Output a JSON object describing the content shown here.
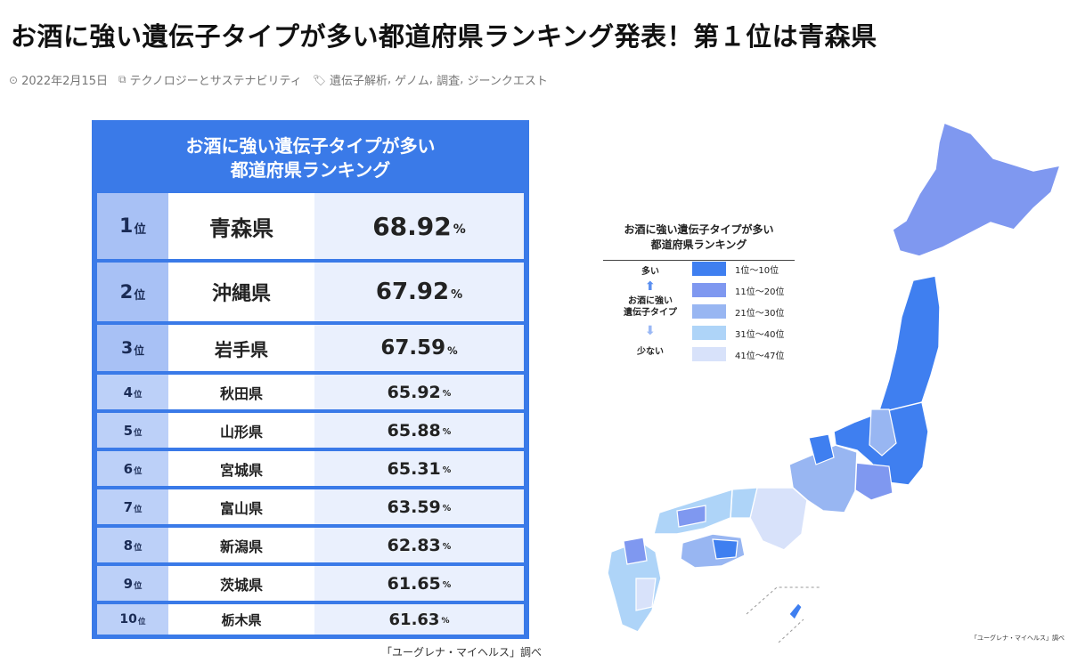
{
  "article": {
    "title": "お酒に強い遺伝子タイプが多い都道府県ランキング発表！第１位は青森県",
    "date": "2022年2月15日",
    "category": "テクノロジーとサステナビリティ",
    "tags": [
      "遺伝子解析",
      "ゲノム",
      "調査",
      "ジーンクエスト"
    ],
    "tag_separator": ",",
    "icons": {
      "date": "clock-icon",
      "category": "copy-icon",
      "tags": "tag-icon"
    }
  },
  "ranking": {
    "title_line1": "お酒に強い遺伝子タイプが多い",
    "title_line2": "都道府県ランキング",
    "rank_unit": "位",
    "percent_unit": "%",
    "rows": [
      {
        "rank": "1",
        "prefecture": "青森県",
        "value": "68.92"
      },
      {
        "rank": "2",
        "prefecture": "沖縄県",
        "value": "67.92"
      },
      {
        "rank": "3",
        "prefecture": "岩手県",
        "value": "67.59"
      },
      {
        "rank": "4",
        "prefecture": "秋田県",
        "value": "65.92"
      },
      {
        "rank": "5",
        "prefecture": "山形県",
        "value": "65.88"
      },
      {
        "rank": "6",
        "prefecture": "宮城県",
        "value": "65.31"
      },
      {
        "rank": "7",
        "prefecture": "富山県",
        "value": "63.59"
      },
      {
        "rank": "8",
        "prefecture": "新潟県",
        "value": "62.83"
      },
      {
        "rank": "9",
        "prefecture": "茨城県",
        "value": "61.65"
      },
      {
        "rank": "10",
        "prefecture": "栃木県",
        "value": "61.63"
      }
    ],
    "credit": "「ユーグレナ・マイヘルス」調べ"
  },
  "map": {
    "legend_title_line1": "お酒に強い遺伝子タイプが多い",
    "legend_title_line2": "都道府県ランキング",
    "scale_more": "多い",
    "scale_mid_line1": "お酒に強い",
    "scale_mid_line2": "遺伝子タイプ",
    "scale_less": "少ない",
    "legend": [
      {
        "label": "1位～10位",
        "color": "#3f7ff0"
      },
      {
        "label": "11位～20位",
        "color": "#7f98f0"
      },
      {
        "label": "21位～30位",
        "color": "#98b6f2"
      },
      {
        "label": "31位～40位",
        "color": "#aed4f8"
      },
      {
        "label": "41位～47位",
        "color": "#d8e2fa"
      }
    ],
    "credit": "「ユーグレナ・マイヘルス」調べ"
  },
  "colors": {
    "panel_blue": "#3a7ae8",
    "rank_cell": "#bcd0f8",
    "value_cell": "#eaf0fd"
  }
}
